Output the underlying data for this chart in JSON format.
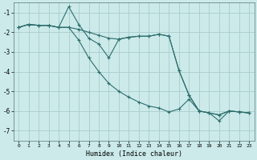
{
  "xlabel": "Humidex (Indice chaleur)",
  "background_color": "#cceaea",
  "grid_color": "#aacccc",
  "line_color": "#2e6e6e",
  "xlim": [
    -0.5,
    23.5
  ],
  "ylim": [
    -7.5,
    -0.5
  ],
  "yticks": [
    -7,
    -6,
    -5,
    -4,
    -3,
    -2,
    -1
  ],
  "xticks": [
    0,
    1,
    2,
    3,
    4,
    5,
    6,
    7,
    8,
    9,
    10,
    11,
    12,
    13,
    14,
    15,
    16,
    17,
    18,
    19,
    20,
    21,
    22,
    23
  ],
  "series1_x": [
    0,
    1,
    2,
    3,
    4,
    5,
    6,
    7,
    8,
    9,
    10,
    11,
    12,
    13,
    14,
    15,
    16,
    17,
    18,
    19,
    20,
    21,
    22,
    23
  ],
  "series1_y": [
    -1.75,
    -1.6,
    -1.65,
    -1.65,
    -1.75,
    -1.75,
    -1.85,
    -2.0,
    -2.15,
    -2.3,
    -2.35,
    -2.25,
    -2.2,
    -2.2,
    -2.1,
    -2.2,
    -3.95,
    -5.2,
    -6.0,
    -6.1,
    -6.2,
    -6.0,
    -6.05,
    -6.1
  ],
  "series2_x": [
    0,
    1,
    2,
    3,
    4,
    5,
    6,
    7,
    8,
    9,
    10,
    11,
    12,
    13,
    14,
    15,
    16,
    17,
    18,
    19,
    20,
    21,
    22,
    23
  ],
  "series2_y": [
    -1.75,
    -1.6,
    -1.65,
    -1.65,
    -1.75,
    -0.7,
    -1.6,
    -2.3,
    -2.6,
    -3.3,
    -2.35,
    -2.25,
    -2.2,
    -2.2,
    -2.1,
    -2.2,
    -3.95,
    -5.2,
    -6.0,
    -6.1,
    -6.2,
    -6.0,
    -6.05,
    -6.1
  ],
  "series3_x": [
    0,
    1,
    2,
    3,
    4,
    5,
    6,
    7,
    8,
    9,
    10,
    11,
    12,
    13,
    14,
    15,
    16,
    17,
    18,
    19,
    20,
    21,
    22,
    23
  ],
  "series3_y": [
    -1.75,
    -1.6,
    -1.65,
    -1.65,
    -1.75,
    -1.75,
    -2.4,
    -3.3,
    -4.0,
    -4.6,
    -5.0,
    -5.3,
    -5.55,
    -5.75,
    -5.85,
    -6.05,
    -5.9,
    -5.4,
    -6.0,
    -6.1,
    -6.5,
    -6.0,
    -6.05,
    -6.1
  ]
}
